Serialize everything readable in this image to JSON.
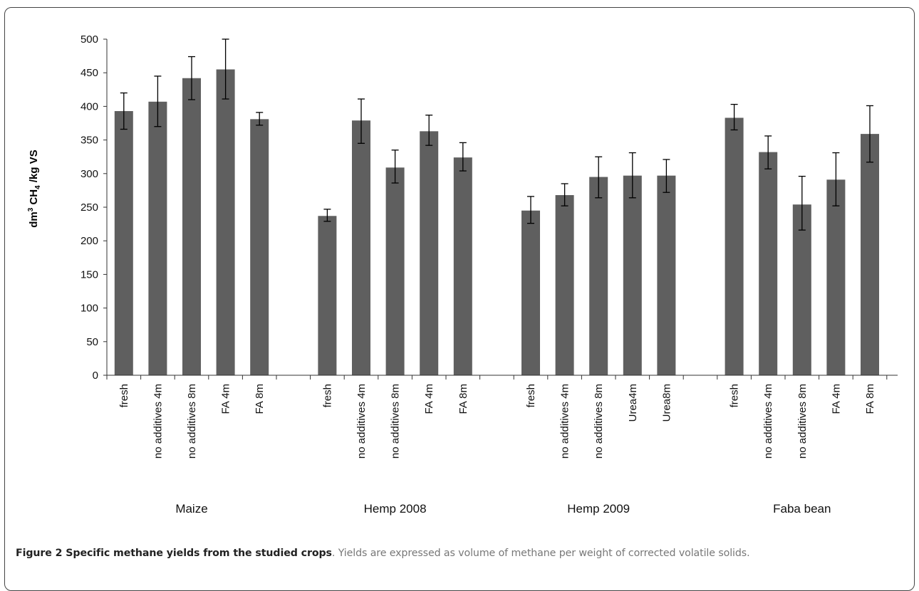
{
  "chart_data": {
    "type": "bar",
    "ylabel_main": "dm",
    "ylabel_sup": "3",
    "ylabel_mid": " CH",
    "ylabel_sub": "4",
    "ylabel_end": " /kg VS",
    "ylim": [
      0,
      500
    ],
    "yticks": [
      "0",
      "50",
      "100",
      "150",
      "200",
      "250",
      "300",
      "350",
      "400",
      "450",
      "500"
    ],
    "color": "#5f5f5f",
    "groups": [
      {
        "name": "Maize",
        "bars": [
          {
            "label": "fresh",
            "value": 393,
            "err_high": 420,
            "err_low": 366
          },
          {
            "label": "no additives 4m",
            "value": 407,
            "err_high": 445,
            "err_low": 370
          },
          {
            "label": "no additives 8m",
            "value": 442,
            "err_high": 474,
            "err_low": 410
          },
          {
            "label": "FA 4m",
            "value": 455,
            "err_high": 500,
            "err_low": 411
          },
          {
            "label": "FA 8m",
            "value": 381,
            "err_high": 391,
            "err_low": 372
          }
        ]
      },
      {
        "name": "Hemp 2008",
        "bars": [
          {
            "label": "fresh",
            "value": 237,
            "err_high": 247,
            "err_low": 229
          },
          {
            "label": "no additives 4m",
            "value": 379,
            "err_high": 411,
            "err_low": 345
          },
          {
            "label": "no additives 8m",
            "value": 309,
            "err_high": 335,
            "err_low": 286
          },
          {
            "label": "FA 4m",
            "value": 363,
            "err_high": 387,
            "err_low": 342
          },
          {
            "label": "FA 8m",
            "value": 324,
            "err_high": 346,
            "err_low": 304
          }
        ]
      },
      {
        "name": "Hemp 2009",
        "bars": [
          {
            "label": "fresh",
            "value": 245,
            "err_high": 266,
            "err_low": 226
          },
          {
            "label": "no additives 4m",
            "value": 268,
            "err_high": 285,
            "err_low": 252
          },
          {
            "label": "no additives 8m",
            "value": 295,
            "err_high": 325,
            "err_low": 264
          },
          {
            "label": "Urea4m",
            "value": 297,
            "err_high": 331,
            "err_low": 264
          },
          {
            "label": "Urea8m",
            "value": 297,
            "err_high": 321,
            "err_low": 272
          }
        ]
      },
      {
        "name": "Faba bean",
        "bars": [
          {
            "label": "fresh",
            "value": 383,
            "err_high": 403,
            "err_low": 365
          },
          {
            "label": "no additives 4m",
            "value": 332,
            "err_high": 356,
            "err_low": 307
          },
          {
            "label": "no additives 8m",
            "value": 254,
            "err_high": 296,
            "err_low": 216
          },
          {
            "label": "FA 4m",
            "value": 291,
            "err_high": 331,
            "err_low": 252
          },
          {
            "label": "FA 8m",
            "value": 359,
            "err_high": 401,
            "err_low": 317
          }
        ]
      }
    ]
  },
  "caption": {
    "bold": "Figure 2 Specific methane yields from the studied crops",
    "text": ". Yields are expressed as volume of methane per weight of corrected volatile solids."
  }
}
